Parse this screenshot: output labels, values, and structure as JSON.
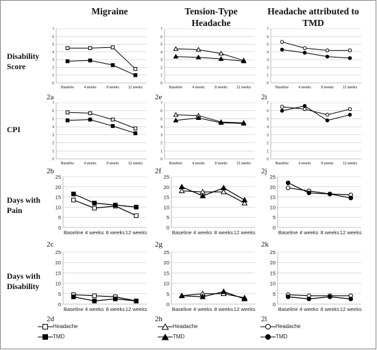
{
  "columns": [
    {
      "title": "Migraine"
    },
    {
      "title": "Tension-Type Headache"
    },
    {
      "title": "Headache attributed to TMD"
    }
  ],
  "row_labels": [
    "Disability Score",
    "CPI",
    "Days with Pain",
    "Days with Disability"
  ],
  "panel_ids": [
    "2a",
    "2e",
    "2i",
    "2b",
    "2f",
    "2j",
    "2c",
    "2g",
    "2k",
    "2d",
    "2h",
    "2l"
  ],
  "legend": {
    "headache": "Headache",
    "tmd": "TMD"
  },
  "colors": {
    "line": "#000000",
    "grid": "#c8c8c8",
    "axis": "#888888"
  },
  "chart_data": [
    {
      "type": "line",
      "panel": "2a",
      "categories": [
        "Baseline",
        "4 weeks",
        "8 weeks",
        "12 weeks"
      ],
      "ylim": [
        0,
        7
      ],
      "yticks": [
        0,
        1,
        2,
        3,
        4,
        5,
        6,
        7
      ],
      "grid": true,
      "series": [
        {
          "name": "Headache",
          "marker": "open-square",
          "values": [
            4.5,
            4.5,
            4.6,
            1.8
          ]
        },
        {
          "name": "TMD",
          "marker": "filled-square",
          "values": [
            2.8,
            2.9,
            2.3,
            1.0
          ]
        }
      ]
    },
    {
      "type": "line",
      "panel": "2e",
      "categories": [
        "Baseline",
        "4 weeks",
        "8 weeks",
        "12 weeks"
      ],
      "ylim": [
        0,
        7
      ],
      "yticks": [
        0,
        1,
        2,
        3,
        4,
        5,
        6,
        7
      ],
      "grid": true,
      "series": [
        {
          "name": "Headache",
          "marker": "open-triangle",
          "values": [
            4.4,
            4.3,
            3.8,
            2.9
          ]
        },
        {
          "name": "TMD",
          "marker": "filled-triangle",
          "values": [
            3.4,
            3.3,
            3.1,
            2.8
          ]
        }
      ]
    },
    {
      "type": "line",
      "panel": "2i",
      "categories": [
        "Baseline",
        "4 weeks",
        "8 weeks",
        "12 weeks"
      ],
      "ylim": [
        0,
        7
      ],
      "yticks": [
        0,
        1,
        2,
        3,
        4,
        5,
        6,
        7
      ],
      "grid": true,
      "series": [
        {
          "name": "Headache",
          "marker": "open-circle",
          "values": [
            5.3,
            4.5,
            4.2,
            4.2
          ]
        },
        {
          "name": "TMD",
          "marker": "filled-circle",
          "values": [
            4.3,
            3.9,
            3.4,
            3.2
          ]
        }
      ]
    },
    {
      "type": "line",
      "panel": "2b",
      "categories": [
        "Baseline",
        "4 weeks",
        "8 weeks",
        "12 weeks"
      ],
      "ylim": [
        0,
        7
      ],
      "yticks": [
        0,
        1,
        2,
        3,
        4,
        5,
        6,
        7
      ],
      "grid": true,
      "series": [
        {
          "name": "Headache",
          "marker": "open-square",
          "values": [
            5.8,
            5.7,
            4.9,
            3.8
          ]
        },
        {
          "name": "TMD",
          "marker": "filled-square",
          "values": [
            4.8,
            4.9,
            4.1,
            3.2
          ]
        }
      ]
    },
    {
      "type": "line",
      "panel": "2f",
      "categories": [
        "Baseline",
        "4 weeks",
        "8 weeks",
        "12 weeks"
      ],
      "ylim": [
        0,
        7
      ],
      "yticks": [
        0,
        1,
        2,
        3,
        4,
        5,
        6,
        7
      ],
      "grid": true,
      "series": [
        {
          "name": "Headache",
          "marker": "open-triangle",
          "values": [
            5.5,
            5.4,
            4.6,
            4.5
          ]
        },
        {
          "name": "TMD",
          "marker": "filled-triangle",
          "values": [
            4.8,
            5.1,
            4.5,
            4.4
          ]
        }
      ]
    },
    {
      "type": "line",
      "panel": "2j",
      "categories": [
        "Baseline",
        "4 weeks",
        "8 weeks",
        "12 weeks"
      ],
      "ylim": [
        0,
        7
      ],
      "yticks": [
        0,
        1,
        2,
        3,
        4,
        5,
        6,
        7
      ],
      "grid": true,
      "series": [
        {
          "name": "Headache",
          "marker": "open-circle",
          "values": [
            6.5,
            6.2,
            5.5,
            6.2
          ]
        },
        {
          "name": "TMD",
          "marker": "filled-circle",
          "values": [
            6.0,
            6.6,
            4.8,
            5.5
          ]
        }
      ]
    },
    {
      "type": "line",
      "panel": "2c",
      "categories": [
        "Baseline",
        "4 weeks",
        "8 weeks",
        "12 weeks"
      ],
      "ylim": [
        0,
        25
      ],
      "yticks": [
        0,
        5,
        10,
        15,
        20,
        25
      ],
      "grid": true,
      "series": [
        {
          "name": "Headache",
          "marker": "open-square",
          "values": [
            13.5,
            9.5,
            10.5,
            5.8
          ]
        },
        {
          "name": "TMD",
          "marker": "filled-square",
          "values": [
            16.5,
            12.0,
            11.0,
            10.0
          ]
        }
      ]
    },
    {
      "type": "line",
      "panel": "2g",
      "categories": [
        "Baseline",
        "4 weeks",
        "8 weeks",
        "12 weeks"
      ],
      "ylim": [
        0,
        25
      ],
      "yticks": [
        0,
        5,
        10,
        15,
        20,
        25
      ],
      "grid": true,
      "series": [
        {
          "name": "Headache",
          "marker": "open-triangle",
          "values": [
            18.0,
            17.5,
            17.5,
            12.0
          ]
        },
        {
          "name": "TMD",
          "marker": "filled-triangle",
          "values": [
            20.0,
            15.5,
            19.5,
            13.5
          ]
        }
      ]
    },
    {
      "type": "line",
      "panel": "2k",
      "categories": [
        "Baseline",
        "4 weeks",
        "8 weeks",
        "12 weeks"
      ],
      "ylim": [
        0,
        25
      ],
      "yticks": [
        0,
        5,
        10,
        15,
        20,
        25
      ],
      "grid": true,
      "series": [
        {
          "name": "Headache",
          "marker": "open-circle",
          "values": [
            19.5,
            18.0,
            16.5,
            16.0
          ]
        },
        {
          "name": "TMD",
          "marker": "filled-circle",
          "values": [
            22.0,
            17.0,
            16.5,
            14.5
          ]
        }
      ]
    },
    {
      "type": "line",
      "panel": "2d",
      "categories": [
        "Baseline",
        "4 weeks",
        "8 weeks",
        "12 weeks"
      ],
      "ylim": [
        0,
        25
      ],
      "yticks": [
        0,
        5,
        10,
        15,
        20,
        25
      ],
      "grid": true,
      "series": [
        {
          "name": "Headache",
          "marker": "open-square",
          "values": [
            4.5,
            4.0,
            3.5,
            1.5
          ]
        },
        {
          "name": "TMD",
          "marker": "filled-square",
          "values": [
            3.5,
            1.5,
            2.5,
            1.5
          ]
        }
      ]
    },
    {
      "type": "line",
      "panel": "2h",
      "categories": [
        "Baseline",
        "4 weeks",
        "8 weeks",
        "12 weeks"
      ],
      "ylim": [
        0,
        25
      ],
      "yticks": [
        0,
        5,
        10,
        15,
        20,
        25
      ],
      "grid": true,
      "series": [
        {
          "name": "Headache",
          "marker": "open-triangle",
          "values": [
            4.0,
            5.0,
            5.0,
            3.0
          ]
        },
        {
          "name": "TMD",
          "marker": "filled-triangle",
          "values": [
            4.0,
            3.5,
            6.0,
            2.5
          ]
        }
      ]
    },
    {
      "type": "line",
      "panel": "2l",
      "categories": [
        "Baseline",
        "4 weeks",
        "8 weeks",
        "12 weeks"
      ],
      "ylim": [
        0,
        25
      ],
      "yticks": [
        0,
        5,
        10,
        15,
        20,
        25
      ],
      "grid": true,
      "series": [
        {
          "name": "Headache",
          "marker": "open-circle",
          "values": [
            4.5,
            4.0,
            4.0,
            4.0
          ]
        },
        {
          "name": "TMD",
          "marker": "filled-circle",
          "values": [
            3.5,
            2.5,
            3.5,
            2.5
          ]
        }
      ]
    }
  ]
}
